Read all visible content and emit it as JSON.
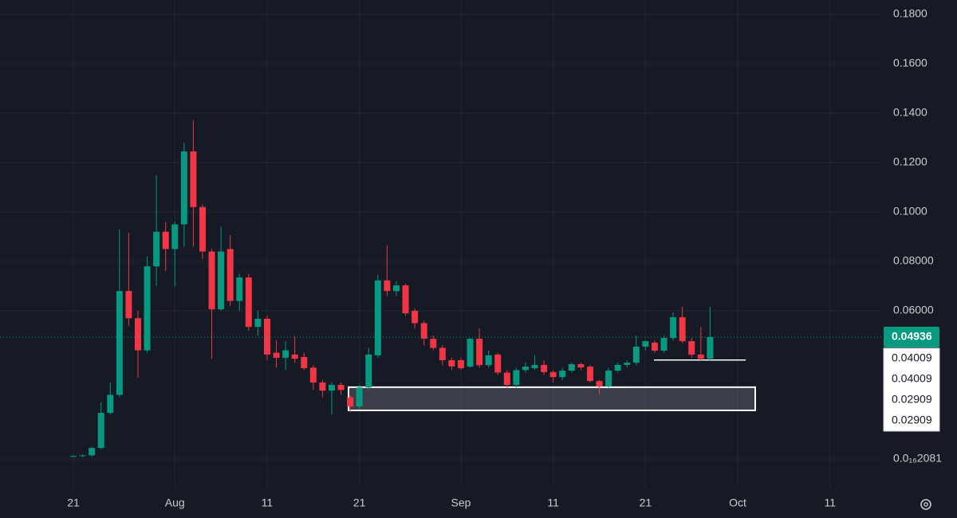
{
  "chart_data": {
    "type": "candlestick",
    "up_color": "#089981",
    "down_color": "#f23645",
    "grid": true,
    "ylim": [
      -0.0116,
      0.1858
    ],
    "yticks": [
      {
        "value": 2.081e-17,
        "label": "0.0₁₆2081"
      },
      {
        "value": 0.06,
        "label": "0.06000"
      },
      {
        "value": 0.08,
        "label": "0.08000"
      },
      {
        "value": 0.1,
        "label": "0.1000"
      },
      {
        "value": 0.12,
        "label": "0.1200"
      },
      {
        "value": 0.14,
        "label": "0.1400"
      },
      {
        "value": 0.16,
        "label": "0.1600"
      },
      {
        "value": 0.18,
        "label": "0.1800"
      }
    ],
    "xlim": [
      -7.95,
      87.55
    ],
    "xticks": [
      {
        "value": 0,
        "label": "21"
      },
      {
        "value": 11,
        "label": "Aug"
      },
      {
        "value": 21,
        "label": "11"
      },
      {
        "value": 31,
        "label": "21"
      },
      {
        "value": 42,
        "label": "Sep"
      },
      {
        "value": 52,
        "label": "11"
      },
      {
        "value": 62,
        "label": "21"
      },
      {
        "value": 72,
        "label": "Oct"
      },
      {
        "value": 82,
        "label": "11"
      }
    ],
    "ohlc": [
      [
        0.0012,
        0.0015,
        0.0008,
        0.0012
      ],
      [
        0.0012,
        0.0018,
        0.0008,
        0.0015
      ],
      [
        0.0015,
        0.005,
        0.001,
        0.0045
      ],
      [
        0.0045,
        0.023,
        0.004,
        0.0187
      ],
      [
        0.0187,
        0.031,
        0.018,
        0.026
      ],
      [
        0.026,
        0.093,
        0.025,
        0.068
      ],
      [
        0.068,
        0.0916,
        0.054,
        0.057
      ],
      [
        0.057,
        0.06,
        0.033,
        0.044
      ],
      [
        0.044,
        0.082,
        0.043,
        0.078
      ],
      [
        0.078,
        0.115,
        0.07,
        0.092
      ],
      [
        0.092,
        0.096,
        0.076,
        0.085
      ],
      [
        0.085,
        0.096,
        0.07,
        0.095
      ],
      [
        0.095,
        0.128,
        0.086,
        0.1245
      ],
      [
        0.1245,
        0.137,
        0.086,
        0.102
      ],
      [
        0.102,
        0.103,
        0.081,
        0.084
      ],
      [
        0.084,
        0.085,
        0.0406,
        0.0606
      ],
      [
        0.0606,
        0.094,
        0.06,
        0.084
      ],
      [
        0.085,
        0.0906,
        0.062,
        0.064
      ],
      [
        0.064,
        0.075,
        0.06,
        0.0735
      ],
      [
        0.0735,
        0.075,
        0.052,
        0.0535
      ],
      [
        0.0535,
        0.06,
        0.05,
        0.0568
      ],
      [
        0.0568,
        0.058,
        0.04,
        0.0423
      ],
      [
        0.043,
        0.048,
        0.037,
        0.041
      ],
      [
        0.041,
        0.0477,
        0.036,
        0.044
      ],
      [
        0.0423,
        0.0497,
        0.039,
        0.0406
      ],
      [
        0.0413,
        0.043,
        0.036,
        0.0368
      ],
      [
        0.037,
        0.038,
        0.028,
        0.031
      ],
      [
        0.031,
        0.032,
        0.025,
        0.0277
      ],
      [
        0.0277,
        0.031,
        0.018,
        0.03
      ],
      [
        0.03,
        0.031,
        0.026,
        0.028
      ],
      [
        0.025,
        0.026,
        0.019,
        0.0213
      ],
      [
        0.0213,
        0.03,
        0.02,
        0.029
      ],
      [
        0.029,
        0.045,
        0.028,
        0.0423
      ],
      [
        0.042,
        0.0745,
        0.041,
        0.0723
      ],
      [
        0.0723,
        0.0865,
        0.066,
        0.068
      ],
      [
        0.068,
        0.072,
        0.066,
        0.0703
      ],
      [
        0.0703,
        0.071,
        0.058,
        0.059
      ],
      [
        0.06,
        0.061,
        0.053,
        0.055
      ],
      [
        0.055,
        0.056,
        0.046,
        0.0487
      ],
      [
        0.0487,
        0.05,
        0.044,
        0.045
      ],
      [
        0.045,
        0.046,
        0.038,
        0.04
      ],
      [
        0.04,
        0.041,
        0.036,
        0.0375
      ],
      [
        0.04,
        0.041,
        0.036,
        0.0368
      ],
      [
        0.0374,
        0.049,
        0.037,
        0.0487
      ],
      [
        0.0487,
        0.053,
        0.037,
        0.038
      ],
      [
        0.038,
        0.044,
        0.037,
        0.042
      ],
      [
        0.0423,
        0.043,
        0.034,
        0.035
      ],
      [
        0.035,
        0.036,
        0.029,
        0.03
      ],
      [
        0.03,
        0.037,
        0.029,
        0.036
      ],
      [
        0.036,
        0.039,
        0.035,
        0.0374
      ],
      [
        0.0368,
        0.042,
        0.036,
        0.0381
      ],
      [
        0.0381,
        0.04,
        0.034,
        0.0352
      ],
      [
        0.0352,
        0.036,
        0.031,
        0.0332
      ],
      [
        0.0332,
        0.037,
        0.032,
        0.0358
      ],
      [
        0.0358,
        0.039,
        0.035,
        0.0384
      ],
      [
        0.0384,
        0.039,
        0.036,
        0.0371
      ],
      [
        0.0374,
        0.038,
        0.031,
        0.0316
      ],
      [
        0.0316,
        0.032,
        0.0261,
        0.0294
      ],
      [
        0.0294,
        0.037,
        0.029,
        0.0358
      ],
      [
        0.0358,
        0.039,
        0.035,
        0.0381
      ],
      [
        0.0381,
        0.04,
        0.037,
        0.039
      ],
      [
        0.039,
        0.05,
        0.038,
        0.0455
      ],
      [
        0.0455,
        0.048,
        0.044,
        0.0477
      ],
      [
        0.0471,
        0.048,
        0.043,
        0.0439
      ],
      [
        0.0439,
        0.05,
        0.043,
        0.049
      ],
      [
        0.049,
        0.0594,
        0.048,
        0.0574
      ],
      [
        0.0574,
        0.0616,
        0.047,
        0.0477
      ],
      [
        0.0477,
        0.049,
        0.041,
        0.0423
      ],
      [
        0.0423,
        0.0535,
        0.04,
        0.0406
      ],
      [
        0.0406,
        0.0616,
        0.04,
        0.04936
      ]
    ],
    "last_price": 0.04936,
    "level": 0.04009,
    "zone": {
      "top": 0.02909,
      "bottom": 0.0197
    },
    "price_labels": [
      0.04009,
      0.04009,
      0.02909,
      0.02909
    ]
  }
}
